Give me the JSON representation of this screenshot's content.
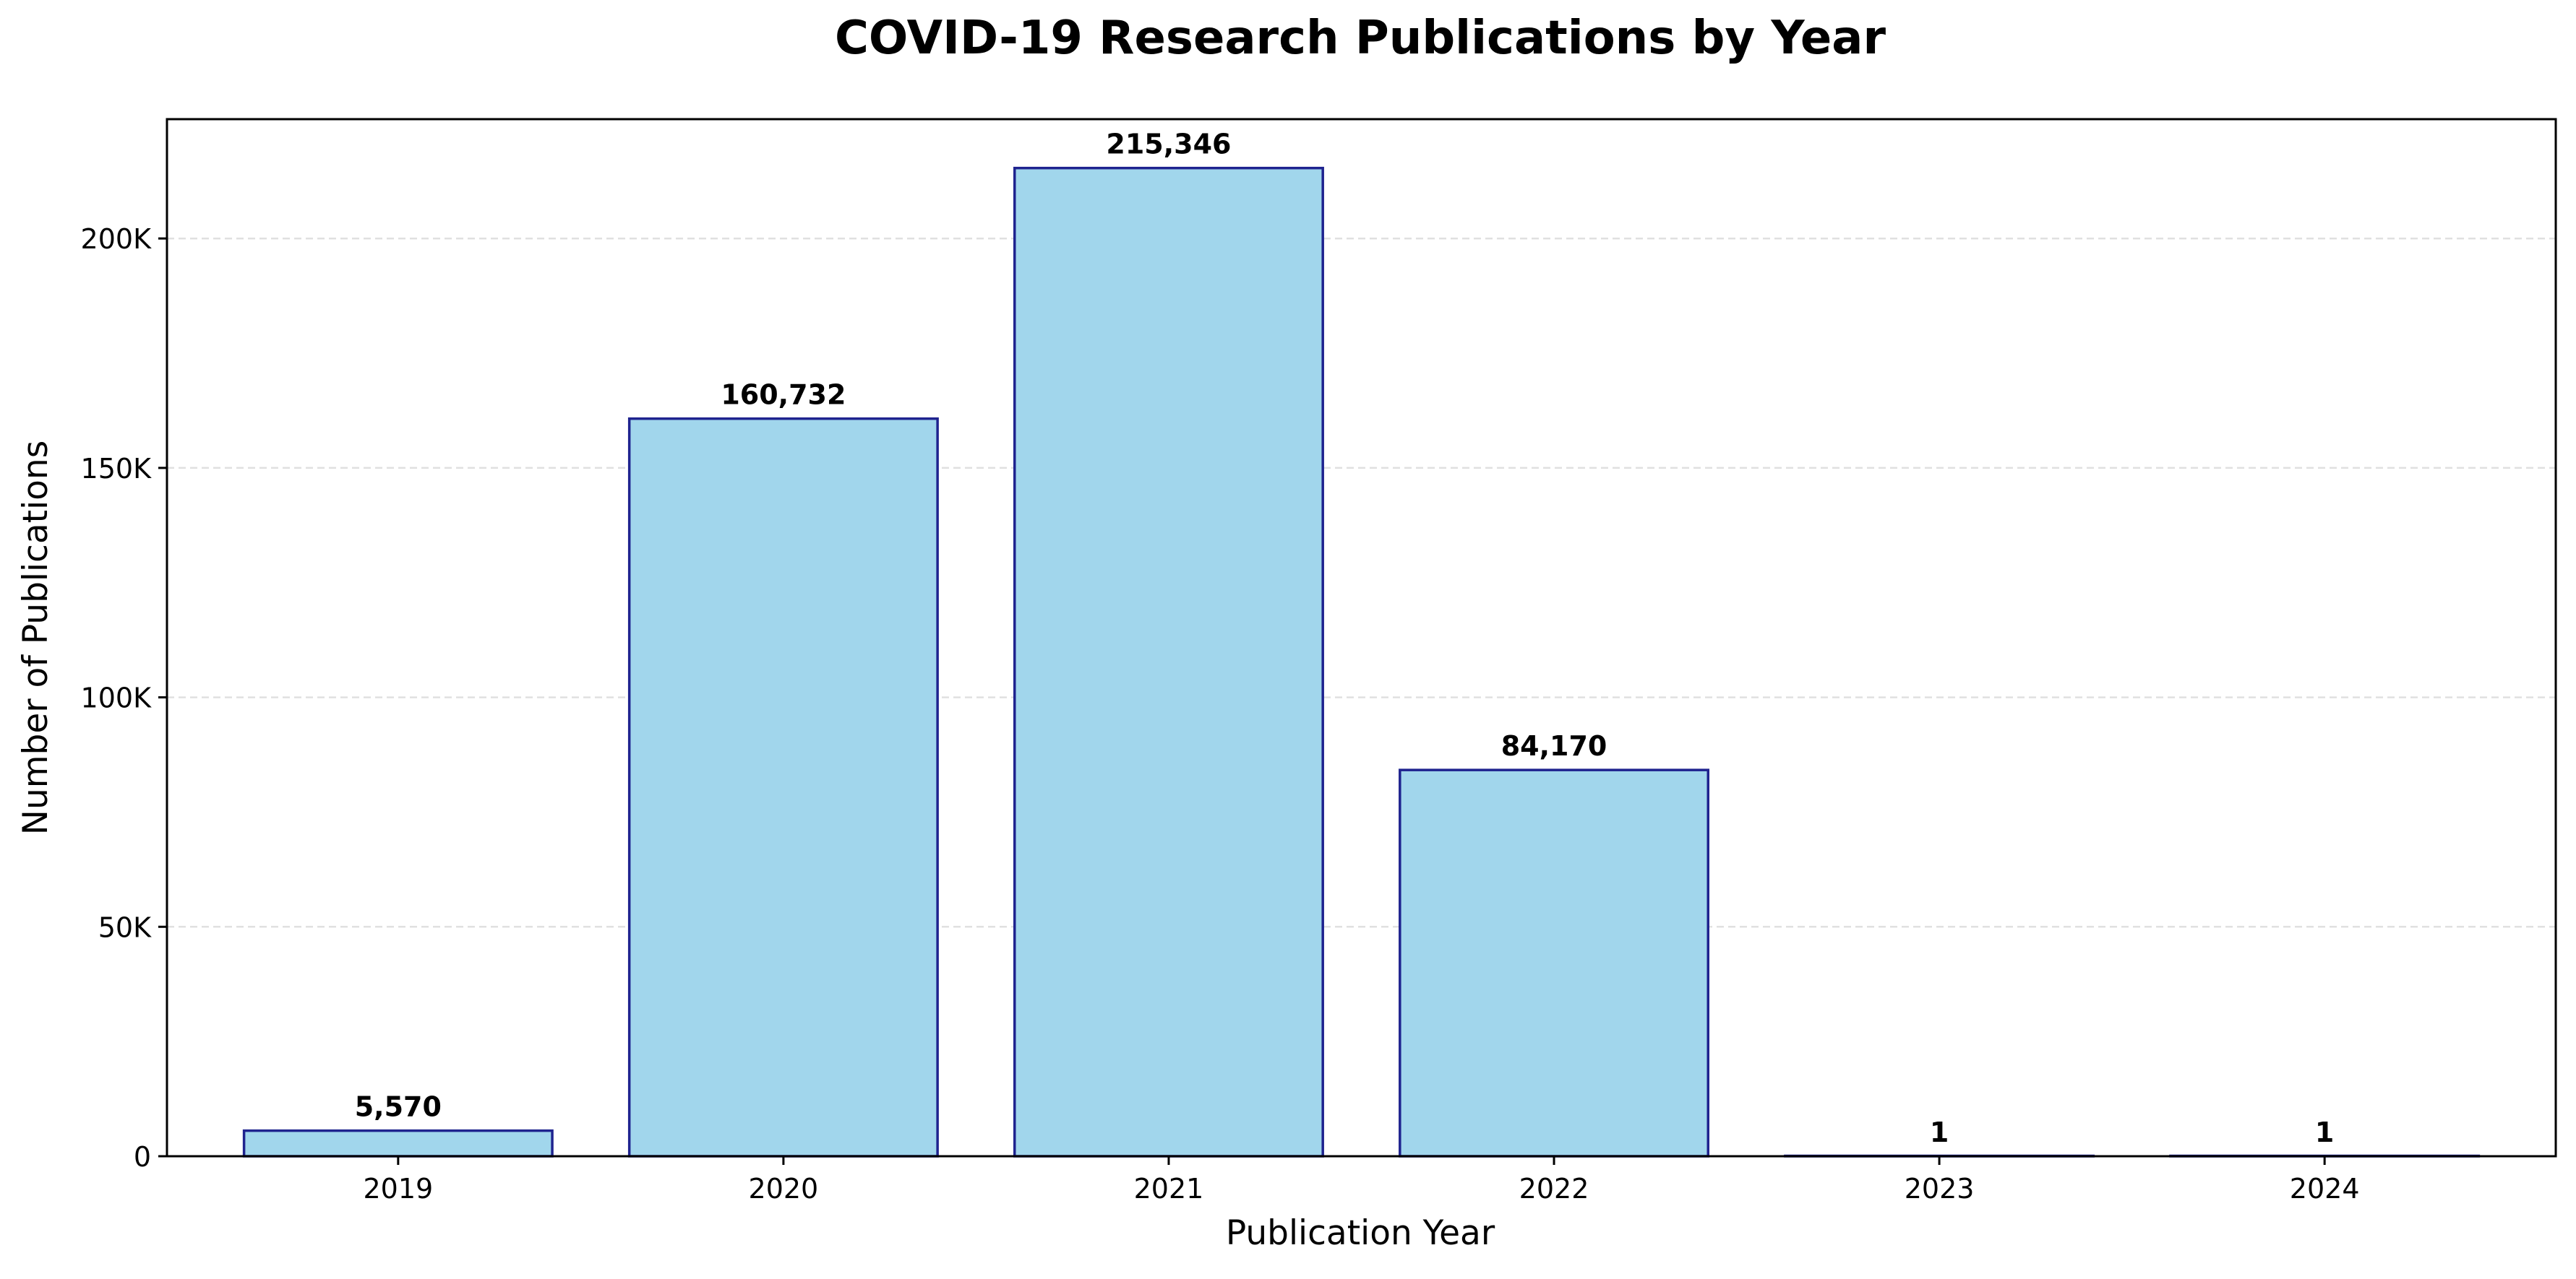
{
  "chart_data": {
    "type": "bar",
    "title": "COVID-19 Research Publications by Year",
    "xlabel": "Publication Year",
    "ylabel": "Number of Publications",
    "categories": [
      "2019",
      "2020",
      "2021",
      "2022",
      "2023",
      "2024"
    ],
    "values": [
      5570,
      160732,
      215346,
      84170,
      1,
      1
    ],
    "data_labels": [
      "5,570",
      "160,732",
      "215,346",
      "84,170",
      "1",
      "1"
    ],
    "ylim": [
      0,
      226000
    ],
    "yticks": [
      0,
      50000,
      100000,
      150000,
      200000
    ],
    "ytick_labels": [
      "0",
      "50K",
      "100K",
      "150K",
      "200K"
    ],
    "grid": "y-dashed",
    "legend": "none",
    "colors": {
      "bar_fill": "#a1d6ec",
      "bar_edge": "#1f238f",
      "grid": "#e0e0e0",
      "axis": "#000000"
    }
  }
}
